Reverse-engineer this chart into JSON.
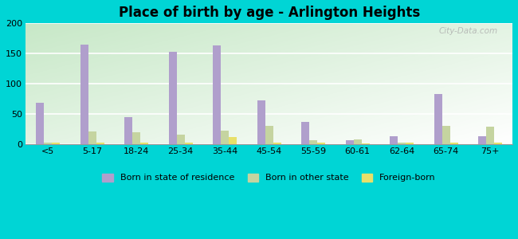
{
  "title": "Place of birth by age - Arlington Heights",
  "categories": [
    "<5",
    "5-17",
    "18-24",
    "25-34",
    "35-44",
    "45-54",
    "55-59",
    "60-61",
    "62-64",
    "65-74",
    "75+"
  ],
  "born_in_state": [
    68,
    165,
    45,
    153,
    163,
    72,
    37,
    6,
    13,
    83,
    13
  ],
  "born_other_state": [
    3,
    21,
    20,
    16,
    22,
    30,
    6,
    8,
    3,
    30,
    29
  ],
  "foreign_born": [
    2,
    2,
    2,
    3,
    11,
    2,
    2,
    1,
    2,
    2,
    2
  ],
  "bar_color_state": "#b09fcc",
  "bar_color_other": "#c5d4a0",
  "bar_color_foreign": "#e8e06a",
  "ylim": [
    0,
    200
  ],
  "yticks": [
    0,
    50,
    100,
    150,
    200
  ],
  "figure_bg": "#00d5d5",
  "watermark": "City-Data.com",
  "legend_labels": [
    "Born in state of residence",
    "Born in other state",
    "Foreign-born"
  ]
}
